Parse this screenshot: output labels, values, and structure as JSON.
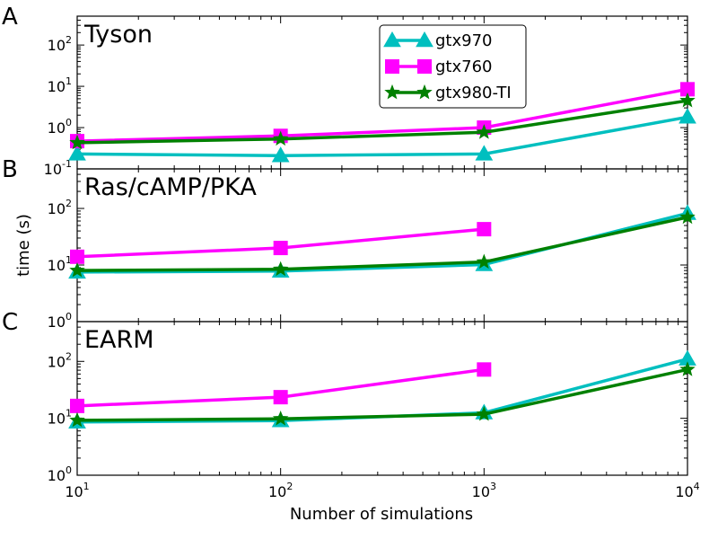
{
  "chart_data": {
    "type": "line",
    "xlabel": "Number of simulations",
    "ylabel": "time (s)",
    "xscale": "log",
    "yscale": "log",
    "xlim": [
      10,
      10000
    ],
    "x": [
      10,
      100,
      1000,
      10000
    ],
    "x_tick_labels": [
      {
        "base": "10",
        "exp": "1"
      },
      {
        "base": "10",
        "exp": "2"
      },
      {
        "base": "10",
        "exp": "3"
      },
      {
        "base": "10",
        "exp": "4"
      }
    ],
    "legend": {
      "placement": "top-center",
      "entries": [
        "gtx970",
        "gtx760",
        "gtx980-TI"
      ]
    },
    "series_styles": [
      {
        "name": "gtx970",
        "color": "#00BFBF",
        "marker": "triangle"
      },
      {
        "name": "gtx760",
        "color": "#FF00FF",
        "marker": "square"
      },
      {
        "name": "gtx980-TI",
        "color": "#008000",
        "marker": "star"
      }
    ],
    "panels": [
      {
        "letter": "A",
        "title": "Tyson",
        "ylim": [
          0.1,
          500
        ],
        "y_ticks": [
          {
            "value": 0.1,
            "base": "10",
            "exp": "-1"
          },
          {
            "value": 1,
            "base": "10",
            "exp": "0"
          },
          {
            "value": 10,
            "base": "10",
            "exp": "1"
          },
          {
            "value": 100,
            "base": "10",
            "exp": "2"
          }
        ],
        "series": [
          {
            "name": "gtx970",
            "values": [
              0.23,
              0.21,
              0.23,
              1.8
            ]
          },
          {
            "name": "gtx760",
            "values": [
              0.47,
              0.63,
              1.0,
              8.5
            ]
          },
          {
            "name": "gtx980-TI",
            "values": [
              0.43,
              0.53,
              0.77,
              4.5
            ]
          }
        ]
      },
      {
        "letter": "B",
        "title": "Ras/cAMP/PKA",
        "ylim": [
          1,
          500
        ],
        "y_ticks": [
          {
            "value": 1,
            "base": "10",
            "exp": "0"
          },
          {
            "value": 10,
            "base": "10",
            "exp": "1"
          },
          {
            "value": 100,
            "base": "10",
            "exp": "2"
          }
        ],
        "series": [
          {
            "name": "gtx970",
            "values": [
              7.5,
              7.8,
              10.2,
              82
            ]
          },
          {
            "name": "gtx760",
            "values": [
              14,
              20,
              43,
              null
            ]
          },
          {
            "name": "gtx980-TI",
            "values": [
              8,
              8.4,
              11.3,
              70
            ]
          }
        ]
      },
      {
        "letter": "C",
        "title": "EARM",
        "ylim": [
          1,
          500
        ],
        "y_ticks": [
          {
            "value": 1,
            "base": "10",
            "exp": "0"
          },
          {
            "value": 10,
            "base": "10",
            "exp": "1"
          },
          {
            "value": 100,
            "base": "10",
            "exp": "2"
          }
        ],
        "series": [
          {
            "name": "gtx970",
            "values": [
              8.6,
              9.1,
              12.5,
              110
            ]
          },
          {
            "name": "gtx760",
            "values": [
              16.5,
              23.5,
              72,
              null
            ]
          },
          {
            "name": "gtx980-TI",
            "values": [
              9.2,
              9.8,
              11.8,
              72
            ]
          }
        ]
      }
    ]
  }
}
